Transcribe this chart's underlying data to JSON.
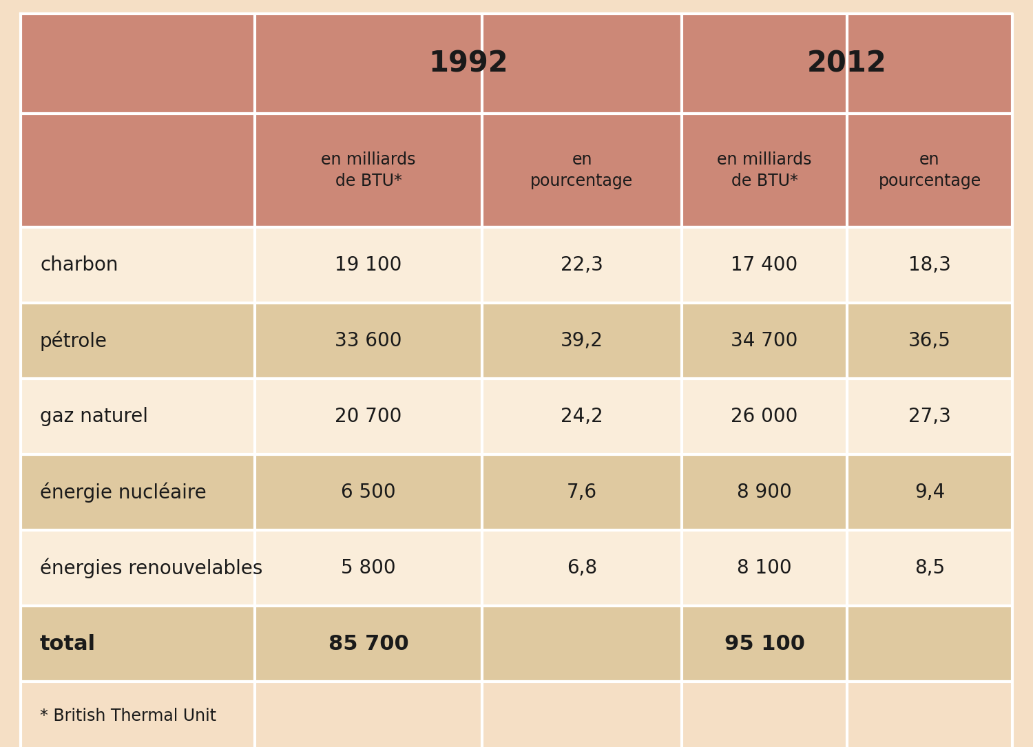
{
  "col_headers_year": [
    "1992",
    "2012"
  ],
  "col_headers_sub": [
    "en milliards\nde BTU*",
    "en\npourcentage",
    "en milliards\nde BTU*",
    "en\npourcentage"
  ],
  "rows": [
    {
      "label": "charbon",
      "v1992_btu": "19 100",
      "v1992_pct": "22,3",
      "v2012_btu": "17 400",
      "v2012_pct": "18,3"
    },
    {
      "label": "pétrole",
      "v1992_btu": "33 600",
      "v1992_pct": "39,2",
      "v2012_btu": "34 700",
      "v2012_pct": "36,5"
    },
    {
      "label": "gaz naturel",
      "v1992_btu": "20 700",
      "v1992_pct": "24,2",
      "v2012_btu": "26 000",
      "v2012_pct": "27,3"
    },
    {
      "label": "énergie nucléaire",
      "v1992_btu": "6 500",
      "v1992_pct": "7,6",
      "v2012_btu": "8 900",
      "v2012_pct": "9,4"
    },
    {
      "label": "énergies renouvelables",
      "v1992_btu": "5 800",
      "v1992_pct": "6,8",
      "v2012_btu": "8 100",
      "v2012_pct": "8,5"
    }
  ],
  "total_row": {
    "label": "total",
    "v1992_btu": "85 700",
    "v2012_btu": "95 100"
  },
  "footnote": "* British Thermal Unit",
  "bg_color": "#f5dfc5",
  "header_bg_color": "#cc8877",
  "row_color_light": "#faedda",
  "row_color_dark": "#dfc9a0",
  "total_row_color": "#dfc9a0",
  "text_dark": "#1a1a1a",
  "border_color": "#ffffff",
  "year_fontsize": 30,
  "subheader_fontsize": 17,
  "data_fontsize": 20,
  "total_fontsize": 22,
  "footnote_fontsize": 17
}
